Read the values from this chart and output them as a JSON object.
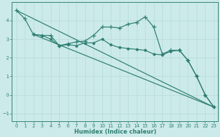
{
  "xlabel": "Humidex (Indice chaleur)",
  "bg_color": "#cceaea",
  "grid_color": "#b0d8d8",
  "line_color": "#2f7f72",
  "xlim": [
    -0.5,
    23.5
  ],
  "ylim": [
    -1.4,
    5.0
  ],
  "yticks": [
    -1,
    0,
    1,
    2,
    3,
    4
  ],
  "xticks": [
    0,
    1,
    2,
    3,
    4,
    5,
    6,
    7,
    8,
    9,
    10,
    11,
    12,
    13,
    14,
    15,
    16,
    17,
    18,
    19,
    20,
    21,
    22,
    23
  ],
  "curve1_x": [
    0,
    1,
    2,
    3,
    4,
    5,
    6,
    7,
    8,
    9,
    10,
    11,
    12,
    13,
    14,
    15,
    16,
    17,
    18,
    19,
    20,
    21,
    22,
    23
  ],
  "curve1_y": [
    4.55,
    4.1,
    3.25,
    3.2,
    3.2,
    2.65,
    2.75,
    2.85,
    2.9,
    3.2,
    3.65,
    3.65,
    3.6,
    3.8,
    3.9,
    4.2,
    3.65,
    2.2,
    2.4,
    2.4,
    1.85,
    1.0,
    0.0,
    -0.65
  ],
  "curve2_x": [
    2,
    3,
    4,
    5,
    6,
    7,
    8,
    9,
    10,
    11,
    12,
    13,
    14,
    15,
    16,
    17,
    18,
    19,
    20,
    21,
    22,
    23
  ],
  "curve2_y": [
    3.25,
    3.2,
    3.0,
    2.65,
    2.7,
    2.65,
    2.8,
    2.8,
    3.0,
    2.7,
    2.55,
    2.5,
    2.45,
    2.4,
    2.2,
    2.15,
    2.35,
    2.4,
    1.85,
    1.0,
    0.0,
    -0.65
  ],
  "line3_x": [
    2,
    23
  ],
  "line3_y": [
    3.25,
    -0.65
  ],
  "line4_x": [
    0,
    23
  ],
  "line4_y": [
    4.55,
    -0.65
  ]
}
